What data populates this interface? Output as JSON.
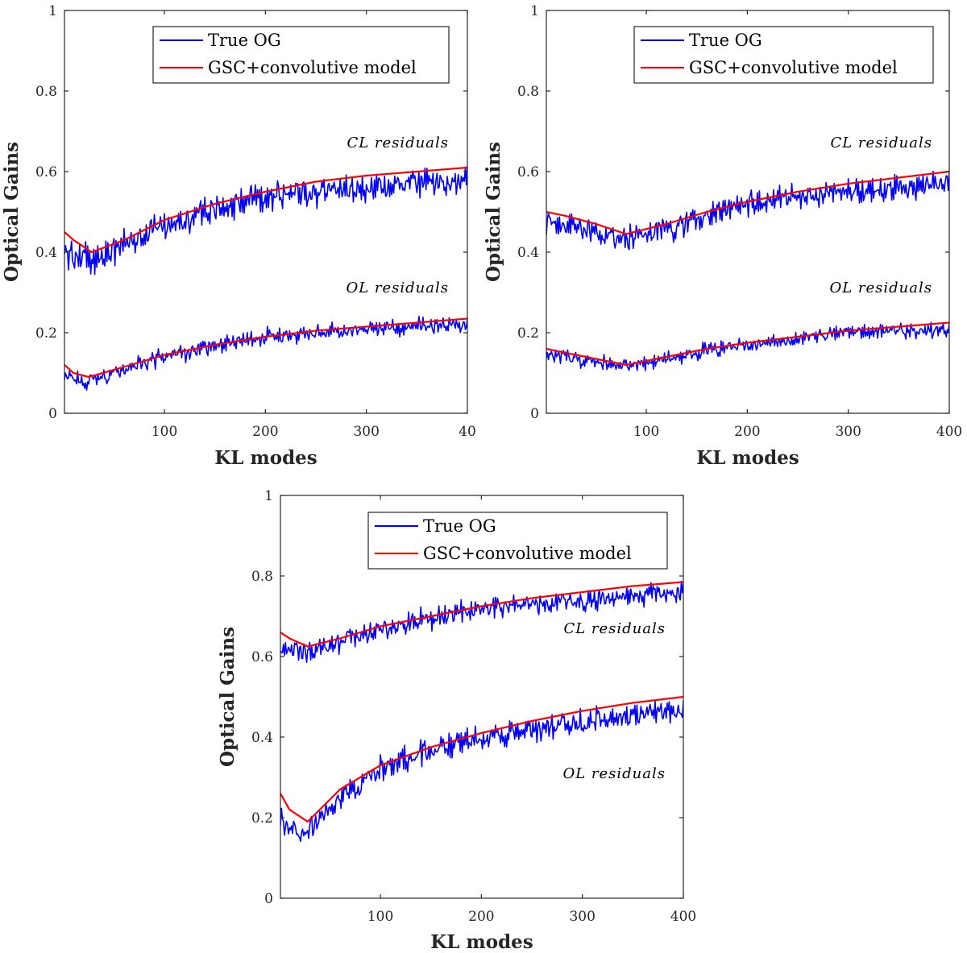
{
  "figure": {
    "background": "#ffffff",
    "axis_color": "#262626"
  },
  "colors": {
    "true_og": "#0000ff",
    "model": "#ff0000"
  },
  "chart_data": [
    {
      "type": "line",
      "xlabel": "KL modes",
      "ylabel": "Optical Gains",
      "xlim": [
        1,
        400
      ],
      "ylim": [
        0,
        1
      ],
      "x_ticks": [
        100,
        200,
        300,
        40
      ],
      "y_ticks": [
        0,
        0.2,
        0.4,
        0.6,
        0.8,
        1
      ],
      "x_tick_labels": [
        "100",
        "200",
        "300",
        "40"
      ],
      "y_tick_labels": [
        "0",
        "0.2",
        "0.4",
        "0.6",
        "0.8",
        "1"
      ],
      "legend": {
        "position": "top-right",
        "entries": [
          "True OG",
          "GSC+convolutive model"
        ]
      },
      "annotations": [
        "CL residuals",
        "OL residuals"
      ],
      "series": [
        {
          "name": "True OG",
          "group": "CL residuals",
          "color": "#0000ff",
          "noise": 0.035,
          "x": [
            1,
            30,
            100,
            200,
            300,
            400
          ],
          "y": [
            0.4,
            0.38,
            0.47,
            0.54,
            0.56,
            0.58
          ]
        },
        {
          "name": "GSC+convolutive model",
          "group": "CL residuals",
          "color": "#ff0000",
          "noise": 0,
          "x": [
            1,
            10,
            28,
            60,
            100,
            150,
            200,
            250,
            300,
            350,
            400
          ],
          "y": [
            0.45,
            0.43,
            0.4,
            0.43,
            0.48,
            0.52,
            0.55,
            0.575,
            0.59,
            0.6,
            0.61
          ]
        },
        {
          "name": "True OG",
          "group": "OL residuals",
          "color": "#0000ff",
          "noise": 0.02,
          "x": [
            1,
            25,
            100,
            200,
            300,
            400
          ],
          "y": [
            0.09,
            0.08,
            0.14,
            0.19,
            0.21,
            0.22
          ]
        },
        {
          "name": "GSC+convolutive model",
          "group": "OL residuals",
          "color": "#ff0000",
          "noise": 0,
          "x": [
            1,
            10,
            25,
            60,
            100,
            150,
            200,
            250,
            300,
            350,
            400
          ],
          "y": [
            0.12,
            0.1,
            0.09,
            0.115,
            0.145,
            0.17,
            0.19,
            0.205,
            0.215,
            0.225,
            0.235
          ]
        }
      ]
    },
    {
      "type": "line",
      "xlabel": "KL modes",
      "ylabel": "Optical Gains",
      "xlim": [
        1,
        400
      ],
      "ylim": [
        0,
        1
      ],
      "x_ticks": [
        100,
        200,
        300,
        400
      ],
      "y_ticks": [
        0,
        0.2,
        0.4,
        0.6,
        0.8,
        1
      ],
      "x_tick_labels": [
        "100",
        "200",
        "300",
        "400"
      ],
      "y_tick_labels": [
        "0",
        "0.2",
        "0.4",
        "0.6",
        "0.8",
        "1"
      ],
      "legend": {
        "position": "top-right",
        "entries": [
          "True OG",
          "GSC+convolutive model"
        ]
      },
      "annotations": [
        "CL residuals",
        "OL residuals"
      ],
      "series": [
        {
          "name": "True OG",
          "group": "CL residuals",
          "color": "#0000ff",
          "noise": 0.03,
          "x": [
            1,
            40,
            80,
            150,
            200,
            300,
            400
          ],
          "y": [
            0.48,
            0.46,
            0.43,
            0.48,
            0.52,
            0.55,
            0.57
          ]
        },
        {
          "name": "GSC+convolutive model",
          "group": "CL residuals",
          "color": "#ff0000",
          "noise": 0,
          "x": [
            1,
            20,
            50,
            80,
            120,
            160,
            200,
            250,
            300,
            350,
            400
          ],
          "y": [
            0.5,
            0.49,
            0.47,
            0.445,
            0.47,
            0.5,
            0.525,
            0.55,
            0.57,
            0.585,
            0.6
          ]
        },
        {
          "name": "True OG",
          "group": "OL residuals",
          "color": "#0000ff",
          "noise": 0.018,
          "x": [
            1,
            40,
            80,
            150,
            200,
            300,
            400
          ],
          "y": [
            0.15,
            0.13,
            0.115,
            0.15,
            0.17,
            0.2,
            0.21
          ]
        },
        {
          "name": "GSC+convolutive model",
          "group": "OL residuals",
          "color": "#ff0000",
          "noise": 0,
          "x": [
            1,
            20,
            50,
            80,
            120,
            160,
            200,
            250,
            300,
            350,
            400
          ],
          "y": [
            0.16,
            0.15,
            0.135,
            0.12,
            0.14,
            0.16,
            0.175,
            0.19,
            0.205,
            0.215,
            0.225
          ]
        }
      ]
    },
    {
      "type": "line",
      "xlabel": "KL modes",
      "ylabel": "Optical Gains",
      "xlim": [
        1,
        400
      ],
      "ylim": [
        0,
        1
      ],
      "x_ticks": [
        100,
        200,
        300,
        400
      ],
      "y_ticks": [
        0,
        0.2,
        0.4,
        0.6,
        0.8,
        1
      ],
      "x_tick_labels": [
        "100",
        "200",
        "300",
        "400"
      ],
      "y_tick_labels": [
        "0",
        "0.2",
        "0.4",
        "0.6",
        "0.8",
        "1"
      ],
      "legend": {
        "position": "top-left",
        "entries": [
          "True OG",
          "GSC+convolutive model"
        ]
      },
      "annotations": [
        "CL residuals",
        "OL residuals"
      ],
      "series": [
        {
          "name": "True OG",
          "group": "CL residuals",
          "color": "#0000ff",
          "noise": 0.025,
          "x": [
            1,
            30,
            100,
            200,
            300,
            400
          ],
          "y": [
            0.62,
            0.61,
            0.67,
            0.72,
            0.74,
            0.76
          ]
        },
        {
          "name": "GSC+convolutive model",
          "group": "CL residuals",
          "color": "#ff0000",
          "noise": 0,
          "x": [
            1,
            10,
            28,
            60,
            100,
            150,
            200,
            250,
            300,
            350,
            400
          ],
          "y": [
            0.66,
            0.645,
            0.625,
            0.645,
            0.675,
            0.7,
            0.725,
            0.745,
            0.76,
            0.775,
            0.785
          ]
        },
        {
          "name": "True OG",
          "group": "OL residuals",
          "color": "#0000ff",
          "noise": 0.03,
          "x": [
            1,
            25,
            60,
            100,
            150,
            200,
            300,
            400
          ],
          "y": [
            0.19,
            0.16,
            0.25,
            0.32,
            0.37,
            0.4,
            0.44,
            0.47
          ]
        },
        {
          "name": "GSC+convolutive model",
          "group": "OL residuals",
          "color": "#ff0000",
          "noise": 0,
          "x": [
            1,
            10,
            28,
            60,
            100,
            150,
            200,
            250,
            300,
            350,
            400
          ],
          "y": [
            0.26,
            0.22,
            0.19,
            0.27,
            0.33,
            0.375,
            0.41,
            0.44,
            0.465,
            0.485,
            0.5
          ]
        }
      ]
    }
  ]
}
